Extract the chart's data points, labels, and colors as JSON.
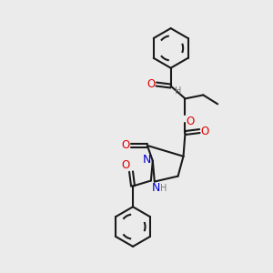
{
  "background_color": "#ebebeb",
  "bond_color": "#1a1a1a",
  "atom_colors": {
    "O": "#e00000",
    "N": "#0000cc",
    "H": "#777777",
    "C": "#1a1a1a"
  },
  "figsize": [
    3.0,
    3.0
  ],
  "dpi": 100
}
